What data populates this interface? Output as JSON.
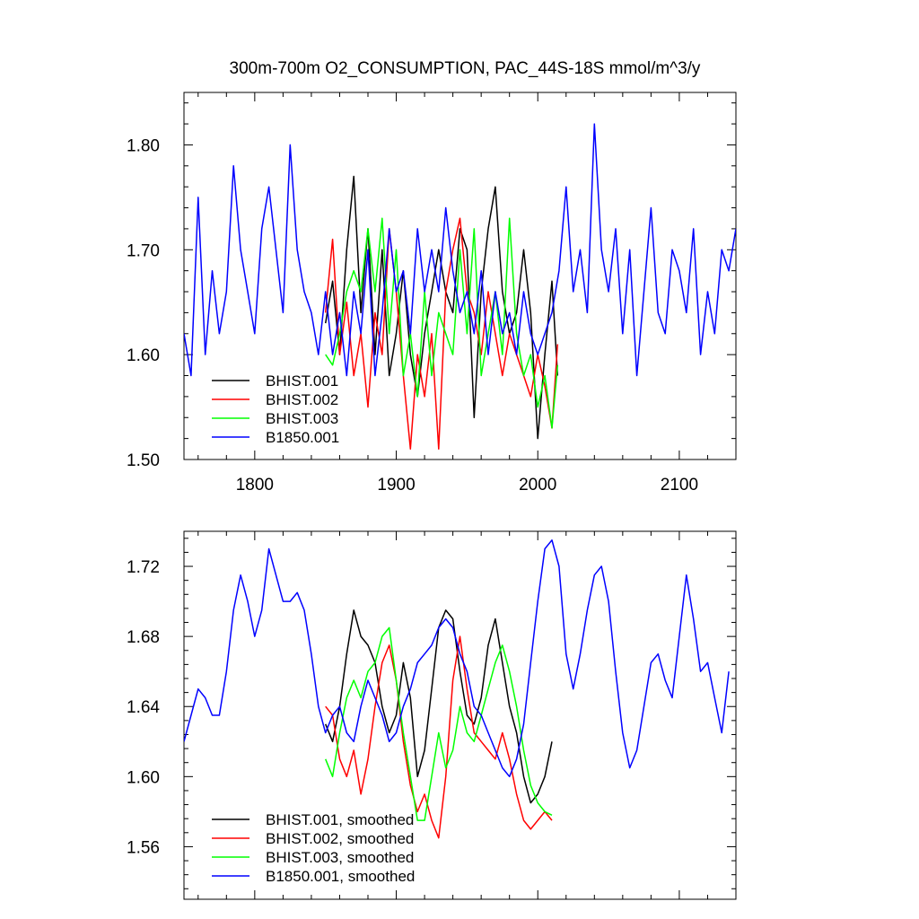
{
  "chart_data": [
    {
      "type": "line",
      "title": "300m-700m O2_CONSUMPTION, PAC_44S-18S  mmol/m^3/y",
      "xlabel": "",
      "ylabel": "",
      "xlim": [
        1750,
        2140
      ],
      "ylim": [
        1.5,
        1.85
      ],
      "x_ticks": [
        1800,
        1900,
        2000,
        2100
      ],
      "x_tick_labels": [
        "1800",
        "1900",
        "2000",
        "2100"
      ],
      "y_ticks": [
        1.5,
        1.6,
        1.7,
        1.8
      ],
      "y_tick_labels": [
        "1.50",
        "1.60",
        "1.70",
        "1.80"
      ],
      "legend_position": "bottom-left",
      "grid": false,
      "series": [
        {
          "name": "BHIST.001",
          "color": "#000000",
          "x": [
            1850,
            1855,
            1860,
            1865,
            1870,
            1875,
            1880,
            1885,
            1890,
            1895,
            1900,
            1905,
            1910,
            1915,
            1920,
            1925,
            1930,
            1935,
            1940,
            1945,
            1950,
            1955,
            1960,
            1965,
            1970,
            1975,
            1980,
            1985,
            1990,
            1995,
            2000,
            2005,
            2010,
            2014
          ],
          "y": [
            1.63,
            1.67,
            1.6,
            1.7,
            1.77,
            1.64,
            1.72,
            1.6,
            1.7,
            1.58,
            1.62,
            1.68,
            1.6,
            1.56,
            1.62,
            1.66,
            1.7,
            1.66,
            1.64,
            1.72,
            1.7,
            1.54,
            1.66,
            1.72,
            1.76,
            1.66,
            1.62,
            1.64,
            1.7,
            1.64,
            1.52,
            1.6,
            1.67,
            1.58
          ]
        },
        {
          "name": "BHIST.002",
          "color": "#ff0000",
          "x": [
            1850,
            1855,
            1860,
            1865,
            1870,
            1875,
            1880,
            1885,
            1890,
            1895,
            1900,
            1905,
            1910,
            1915,
            1920,
            1925,
            1930,
            1935,
            1940,
            1945,
            1950,
            1955,
            1960,
            1965,
            1970,
            1975,
            1980,
            1985,
            1990,
            1995,
            2000,
            2005,
            2010,
            2014
          ],
          "y": [
            1.64,
            1.71,
            1.6,
            1.65,
            1.58,
            1.62,
            1.55,
            1.64,
            1.6,
            1.72,
            1.66,
            1.58,
            1.51,
            1.6,
            1.56,
            1.62,
            1.51,
            1.66,
            1.7,
            1.73,
            1.66,
            1.64,
            1.6,
            1.66,
            1.62,
            1.58,
            1.62,
            1.6,
            1.58,
            1.56,
            1.6,
            1.57,
            1.53,
            1.61
          ]
        },
        {
          "name": "BHIST.003",
          "color": "#00ff00",
          "x": [
            1850,
            1855,
            1860,
            1865,
            1870,
            1875,
            1880,
            1885,
            1890,
            1895,
            1900,
            1905,
            1910,
            1915,
            1920,
            1925,
            1930,
            1935,
            1940,
            1945,
            1950,
            1955,
            1960,
            1965,
            1970,
            1975,
            1980,
            1985,
            1990,
            1995,
            2000,
            2005,
            2010,
            2014
          ],
          "y": [
            1.6,
            1.59,
            1.62,
            1.66,
            1.68,
            1.66,
            1.72,
            1.66,
            1.73,
            1.62,
            1.7,
            1.58,
            1.62,
            1.56,
            1.66,
            1.58,
            1.64,
            1.62,
            1.6,
            1.7,
            1.62,
            1.72,
            1.58,
            1.62,
            1.66,
            1.6,
            1.73,
            1.62,
            1.58,
            1.6,
            1.55,
            1.58,
            1.53,
            1.59
          ]
        },
        {
          "name": "B1850.001",
          "color": "#0000ff",
          "x": [
            1750,
            1755,
            1760,
            1765,
            1770,
            1775,
            1780,
            1785,
            1790,
            1795,
            1800,
            1805,
            1810,
            1815,
            1820,
            1825,
            1830,
            1835,
            1840,
            1845,
            1850,
            1855,
            1860,
            1865,
            1870,
            1875,
            1880,
            1885,
            1890,
            1895,
            1900,
            1905,
            1910,
            1915,
            1920,
            1925,
            1930,
            1935,
            1940,
            1945,
            1950,
            1955,
            1960,
            1965,
            1970,
            1975,
            1980,
            1985,
            1990,
            1995,
            2000,
            2005,
            2010,
            2015,
            2020,
            2025,
            2030,
            2035,
            2040,
            2045,
            2050,
            2055,
            2060,
            2065,
            2070,
            2075,
            2080,
            2085,
            2090,
            2095,
            2100,
            2105,
            2110,
            2115,
            2120,
            2125,
            2130,
            2135,
            2140
          ],
          "y": [
            1.62,
            1.58,
            1.75,
            1.6,
            1.68,
            1.62,
            1.66,
            1.78,
            1.7,
            1.66,
            1.62,
            1.72,
            1.76,
            1.7,
            1.64,
            1.8,
            1.7,
            1.66,
            1.64,
            1.6,
            1.66,
            1.6,
            1.64,
            1.58,
            1.66,
            1.62,
            1.7,
            1.58,
            1.64,
            1.72,
            1.66,
            1.68,
            1.62,
            1.72,
            1.66,
            1.7,
            1.66,
            1.74,
            1.68,
            1.64,
            1.66,
            1.62,
            1.68,
            1.6,
            1.66,
            1.62,
            1.64,
            1.6,
            1.66,
            1.62,
            1.6,
            1.62,
            1.64,
            1.68,
            1.76,
            1.66,
            1.7,
            1.64,
            1.82,
            1.7,
            1.66,
            1.72,
            1.62,
            1.7,
            1.58,
            1.66,
            1.74,
            1.64,
            1.62,
            1.7,
            1.68,
            1.64,
            1.72,
            1.6,
            1.66,
            1.62,
            1.7,
            1.68,
            1.72
          ]
        }
      ]
    },
    {
      "type": "line",
      "title": "",
      "xlabel": "",
      "ylabel": "",
      "xlim": [
        1750,
        2140
      ],
      "ylim": [
        1.53,
        1.74
      ],
      "x_ticks": [
        1800,
        1900,
        2000,
        2100
      ],
      "x_tick_labels": [],
      "y_ticks": [
        1.56,
        1.6,
        1.64,
        1.68,
        1.72
      ],
      "y_tick_labels": [
        "1.56",
        "1.60",
        "1.64",
        "1.68",
        "1.72"
      ],
      "legend_position": "bottom-left",
      "grid": false,
      "series": [
        {
          "name": "BHIST.001, smoothed",
          "color": "#000000",
          "x": [
            1850,
            1855,
            1860,
            1865,
            1870,
            1875,
            1880,
            1885,
            1890,
            1895,
            1900,
            1905,
            1910,
            1915,
            1920,
            1925,
            1930,
            1935,
            1940,
            1945,
            1950,
            1955,
            1960,
            1965,
            1970,
            1975,
            1980,
            1985,
            1990,
            1995,
            2000,
            2005,
            2010
          ],
          "y": [
            1.63,
            1.62,
            1.64,
            1.67,
            1.695,
            1.68,
            1.675,
            1.665,
            1.64,
            1.625,
            1.635,
            1.665,
            1.645,
            1.6,
            1.615,
            1.65,
            1.685,
            1.695,
            1.69,
            1.66,
            1.635,
            1.63,
            1.645,
            1.675,
            1.69,
            1.665,
            1.64,
            1.625,
            1.6,
            1.585,
            1.59,
            1.6,
            1.62
          ]
        },
        {
          "name": "BHIST.002, smoothed",
          "color": "#ff0000",
          "x": [
            1850,
            1855,
            1860,
            1865,
            1870,
            1875,
            1880,
            1885,
            1890,
            1895,
            1900,
            1905,
            1910,
            1915,
            1920,
            1925,
            1930,
            1935,
            1940,
            1945,
            1950,
            1955,
            1960,
            1965,
            1970,
            1975,
            1980,
            1985,
            1990,
            1995,
            2000,
            2005,
            2010
          ],
          "y": [
            1.64,
            1.635,
            1.61,
            1.6,
            1.615,
            1.59,
            1.61,
            1.64,
            1.665,
            1.675,
            1.655,
            1.62,
            1.595,
            1.58,
            1.59,
            1.575,
            1.565,
            1.6,
            1.655,
            1.68,
            1.65,
            1.625,
            1.62,
            1.615,
            1.61,
            1.625,
            1.61,
            1.59,
            1.575,
            1.57,
            1.575,
            1.58,
            1.575
          ]
        },
        {
          "name": "BHIST.003, smoothed",
          "color": "#00ff00",
          "x": [
            1850,
            1855,
            1860,
            1865,
            1870,
            1875,
            1880,
            1885,
            1890,
            1895,
            1900,
            1905,
            1910,
            1915,
            1920,
            1925,
            1930,
            1935,
            1940,
            1945,
            1950,
            1955,
            1960,
            1965,
            1970,
            1975,
            1980,
            1985,
            1990,
            1995,
            2000,
            2005,
            2010
          ],
          "y": [
            1.61,
            1.6,
            1.625,
            1.645,
            1.655,
            1.645,
            1.66,
            1.665,
            1.68,
            1.685,
            1.655,
            1.625,
            1.6,
            1.575,
            1.575,
            1.6,
            1.625,
            1.605,
            1.615,
            1.64,
            1.625,
            1.62,
            1.635,
            1.65,
            1.665,
            1.675,
            1.66,
            1.64,
            1.615,
            1.595,
            1.585,
            1.58,
            1.578
          ]
        },
        {
          "name": "B1850.001, smoothed",
          "color": "#0000ff",
          "x": [
            1750,
            1755,
            1760,
            1765,
            1770,
            1775,
            1780,
            1785,
            1790,
            1795,
            1800,
            1805,
            1810,
            1815,
            1820,
            1825,
            1830,
            1835,
            1840,
            1845,
            1850,
            1855,
            1860,
            1865,
            1870,
            1875,
            1880,
            1885,
            1890,
            1895,
            1900,
            1905,
            1910,
            1915,
            1920,
            1925,
            1930,
            1935,
            1940,
            1945,
            1950,
            1955,
            1960,
            1965,
            1970,
            1975,
            1980,
            1985,
            1990,
            1995,
            2000,
            2005,
            2010,
            2015,
            2020,
            2025,
            2030,
            2035,
            2040,
            2045,
            2050,
            2055,
            2060,
            2065,
            2070,
            2075,
            2080,
            2085,
            2090,
            2095,
            2100,
            2105,
            2110,
            2115,
            2120,
            2125,
            2130,
            2135
          ],
          "y": [
            1.62,
            1.635,
            1.65,
            1.645,
            1.635,
            1.635,
            1.66,
            1.695,
            1.715,
            1.7,
            1.68,
            1.695,
            1.73,
            1.715,
            1.7,
            1.7,
            1.705,
            1.695,
            1.67,
            1.64,
            1.625,
            1.635,
            1.64,
            1.625,
            1.62,
            1.64,
            1.655,
            1.645,
            1.635,
            1.62,
            1.625,
            1.64,
            1.65,
            1.665,
            1.67,
            1.675,
            1.685,
            1.69,
            1.685,
            1.67,
            1.66,
            1.64,
            1.635,
            1.625,
            1.615,
            1.605,
            1.6,
            1.61,
            1.63,
            1.665,
            1.7,
            1.73,
            1.735,
            1.72,
            1.67,
            1.65,
            1.67,
            1.695,
            1.715,
            1.72,
            1.7,
            1.66,
            1.625,
            1.605,
            1.615,
            1.64,
            1.665,
            1.67,
            1.655,
            1.645,
            1.68,
            1.715,
            1.69,
            1.66,
            1.665,
            1.645,
            1.625,
            1.66
          ]
        }
      ]
    }
  ]
}
